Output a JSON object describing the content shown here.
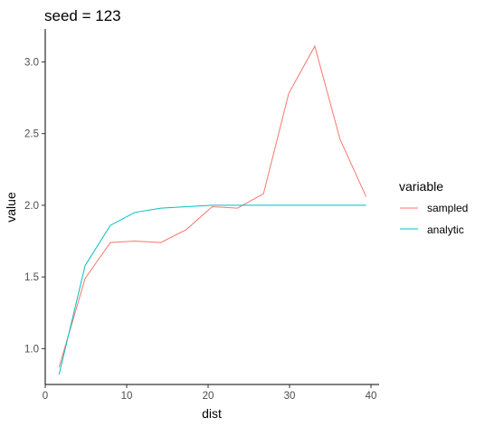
{
  "chart_data": {
    "type": "line",
    "title": "seed = 123",
    "xlabel": "dist",
    "ylabel": "value",
    "xlim": [
      0,
      41
    ],
    "ylim": [
      0.75,
      3.23
    ],
    "xticks": [
      0,
      10,
      20,
      30,
      40
    ],
    "xtick_labels": [
      "0",
      "10",
      "20",
      "30",
      "40"
    ],
    "yticks": [
      1.0,
      1.5,
      2.0,
      2.5,
      3.0
    ],
    "ytick_labels": [
      "1.0",
      "1.5",
      "2.0",
      "2.5",
      "3.0"
    ],
    "grid": false,
    "legend": {
      "title": "variable",
      "placement": "right"
    },
    "series": [
      {
        "name": "sampled",
        "color": "#F8766D",
        "x": [
          1.7,
          4.9,
          8.0,
          11.0,
          14.2,
          17.3,
          20.5,
          23.6,
          26.8,
          29.9,
          33.1,
          36.2,
          39.4
        ],
        "values": [
          0.87,
          1.49,
          1.74,
          1.75,
          1.74,
          1.83,
          1.99,
          1.98,
          2.08,
          2.78,
          3.11,
          2.46,
          2.06
        ]
      },
      {
        "name": "analytic",
        "color": "#00BFC4",
        "x": [
          1.7,
          4.9,
          8.0,
          11.0,
          14.2,
          17.3,
          20.5,
          23.6,
          26.8,
          29.9,
          33.1,
          36.2,
          39.4
        ],
        "values": [
          0.82,
          1.58,
          1.86,
          1.95,
          1.98,
          1.99,
          2.0,
          2.0,
          2.0,
          2.0,
          2.0,
          2.0,
          2.0
        ]
      }
    ]
  }
}
